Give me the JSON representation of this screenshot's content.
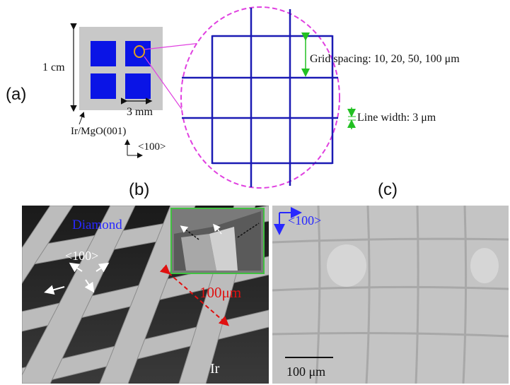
{
  "panel_a": {
    "label": "(a)",
    "sample_size": "1 cm",
    "square_size": "3 mm",
    "substrate": "Ir/MgO(001)",
    "direction": "<100>",
    "grid_spacing": "Grid spacing: 10, 20, 50, 100 μm",
    "line_width": "Line width: 3 μm",
    "colors": {
      "pattern": "#0a14e6",
      "wafer": "#c8c8c8",
      "magnifier": "#e040e0",
      "grid": "#1a1ab4",
      "arrow": "#22c022",
      "marker": "#e0a020"
    }
  },
  "panel_b": {
    "label": "(b)",
    "material": "Diamond",
    "direction": "<100>",
    "scale": "100μm",
    "substrate": "Ir",
    "colors": {
      "material": "#2828ff",
      "scale": "#e01010",
      "inset_border": "#40c040"
    }
  },
  "panel_c": {
    "label": "(c)",
    "direction": "<100>",
    "scale_bar": "100 μm",
    "colors": {
      "direction": "#2828ff"
    }
  }
}
